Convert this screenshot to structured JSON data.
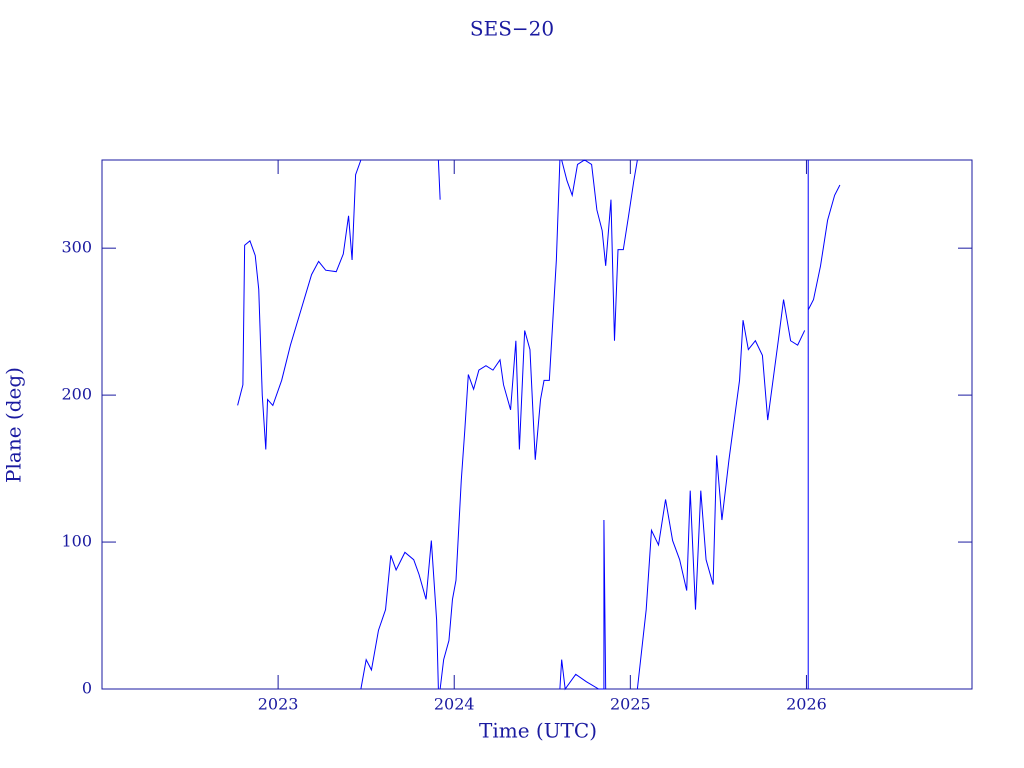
{
  "chart_data": {
    "type": "line",
    "title": "SES−20",
    "x_label": "Time (UTC)",
    "y_label": "Plane (deg)",
    "xlim": [
      2022.0,
      2026.94
    ],
    "xticks": [
      2023,
      2024,
      2025,
      2026
    ],
    "ylim": [
      0,
      360
    ],
    "yticks": [
      0,
      100,
      200,
      300
    ],
    "series": [
      {
        "color": "#0000ff",
        "x": [
          2022.77,
          2022.8,
          2022.81,
          2022.84,
          2022.87,
          2022.89,
          2022.91,
          2022.93,
          2022.94,
          2022.97,
          2023.02,
          2023.07,
          2023.13,
          2023.19,
          2023.23,
          2023.27,
          2023.33,
          2023.37,
          2023.4,
          2023.42,
          2023.44,
          2023.47,
          null,
          2023.47,
          2023.5,
          2023.53,
          2023.57,
          2023.61,
          2023.64,
          2023.67,
          2023.72,
          2023.77,
          2023.8,
          2023.84,
          2023.87,
          2023.9,
          2023.91,
          null,
          2023.91,
          2023.92,
          null,
          2023.92,
          2023.94,
          2023.97,
          2023.99,
          2024.01,
          2024.04,
          2024.06,
          2024.08,
          2024.11,
          2024.14,
          2024.18,
          2024.22,
          2024.26,
          2024.28,
          2024.32,
          2024.35,
          2024.37,
          2024.4,
          2024.43,
          2024.46,
          2024.49,
          2024.51,
          2024.54,
          2024.56,
          2024.58,
          2024.6,
          null,
          2024.61,
          2024.64,
          2024.67,
          2024.7,
          2024.74,
          2024.78,
          2024.81,
          2024.84,
          2024.86,
          2024.89,
          2024.91,
          2024.93,
          2024.96,
          2024.99,
          2025.02,
          2025.04,
          null,
          2024.6,
          2024.61,
          2024.63,
          2024.69,
          2024.75,
          2024.82,
          2024.85,
          2024.85,
          2024.86,
          null,
          2025.04,
          2025.09,
          2025.12,
          2025.16,
          2025.2,
          2025.24,
          2025.28,
          2025.32,
          2025.34,
          2025.37,
          2025.4,
          2025.43,
          2025.47,
          2025.49,
          2025.52,
          2025.56,
          2025.59,
          2025.62,
          2025.64,
          2025.67,
          2025.71,
          2025.75,
          2025.78,
          2025.81,
          2025.84,
          2025.87,
          2025.91,
          2025.95,
          2025.99,
          null,
          2026.01,
          2026.01,
          null,
          2026.01,
          2026.04,
          2026.08,
          2026.12,
          2026.16,
          2026.19
        ],
        "values": [
          193,
          207,
          302,
          305,
          295,
          272,
          200,
          163,
          197,
          193,
          210,
          234,
          258,
          282,
          291,
          285,
          284,
          296,
          322,
          292,
          350,
          360,
          null,
          0,
          20,
          13,
          40,
          54,
          91,
          81,
          93,
          88,
          78,
          61,
          101,
          47,
          0,
          null,
          360,
          333,
          null,
          0,
          20,
          33,
          61,
          74,
          142,
          176,
          214,
          204,
          217,
          220,
          217,
          224,
          207,
          190,
          237,
          163,
          244,
          231,
          156,
          197,
          210,
          210,
          251,
          292,
          360,
          null,
          360,
          346,
          336,
          357,
          360,
          357,
          326,
          312,
          288,
          333,
          237,
          299,
          299,
          322,
          346,
          360,
          null,
          0,
          20,
          0,
          10,
          5,
          0,
          0,
          115,
          0,
          null,
          0,
          54,
          108,
          98,
          129,
          101,
          88,
          67,
          135,
          54,
          135,
          88,
          71,
          159,
          115,
          156,
          183,
          210,
          251,
          231,
          237,
          227,
          183,
          210,
          237,
          265,
          237,
          234,
          244,
          null,
          0,
          360,
          null,
          258,
          265,
          288,
          319,
          336,
          343
        ]
      }
    ]
  }
}
